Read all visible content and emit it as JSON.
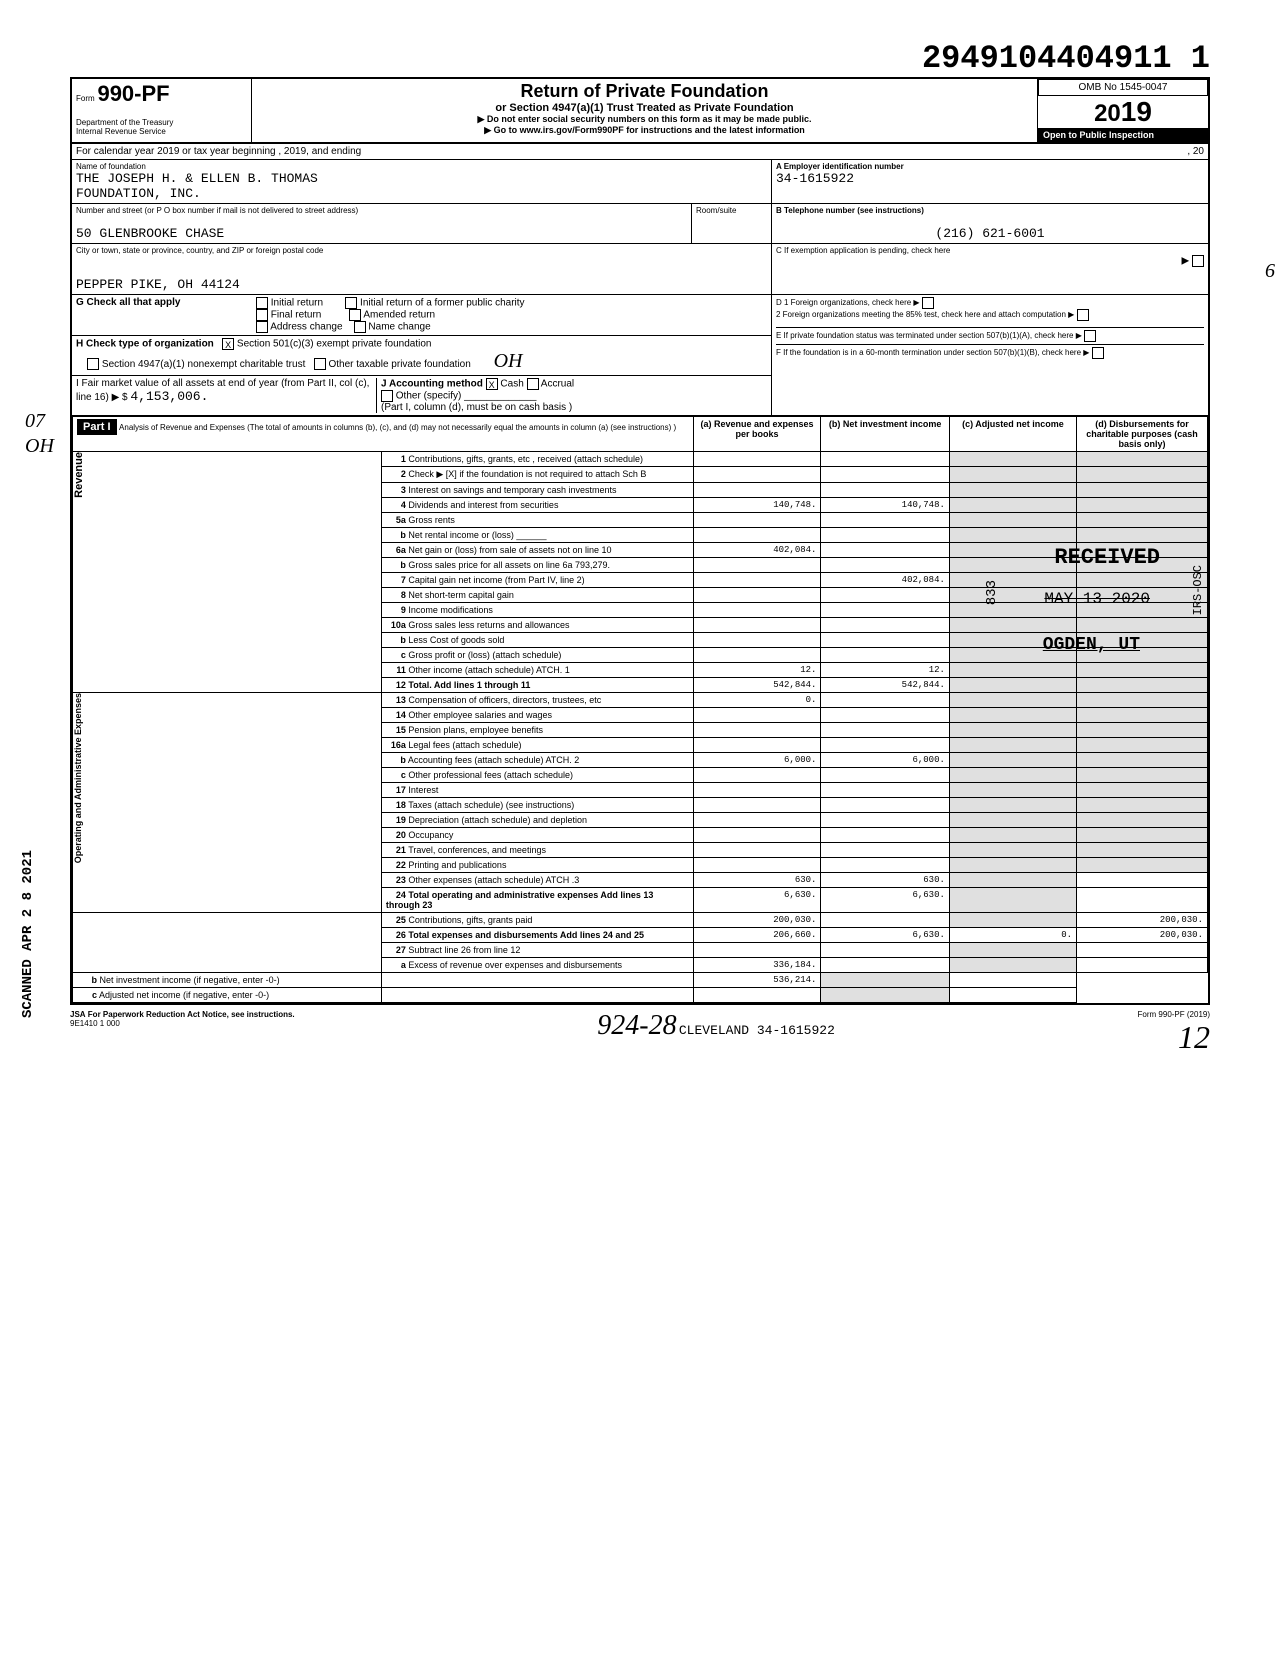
{
  "header_number": "2949104404911 1",
  "form": {
    "prefix": "Form",
    "number": "990-PF",
    "title": "Return of Private Foundation",
    "subtitle": "or Section 4947(a)(1) Trust Treated as Private Foundation",
    "instruction1": "▶ Do not enter social security numbers on this form as it may be made public.",
    "instruction2": "▶ Go to www.irs.gov/Form990PF for instructions and the latest information",
    "dept1": "Department of the Treasury",
    "dept2": "Internal Revenue Service",
    "omb": "OMB No 1545-0047",
    "year": "2019",
    "year_prefix": "20",
    "inspection": "Open to Public Inspection"
  },
  "calendar_year": {
    "label": "For calendar year 2019 or tax year beginning",
    "ending_label": ", 2019, and ending",
    "ending_suffix": ", 20"
  },
  "foundation": {
    "name_label": "Name of foundation",
    "name": "THE JOSEPH H. & ELLEN B. THOMAS",
    "name2": "FOUNDATION, INC.",
    "address_label": "Number and street (or P O  box number if mail is not delivered to street address)",
    "address": "50 GLENBROOKE CHASE",
    "city_label": "City or town, state or province, country, and ZIP or foreign postal code",
    "city": "PEPPER PIKE, OH 44124",
    "room_label": "Room/suite"
  },
  "boxes": {
    "a_label": "A  Employer identification number",
    "a_value": "34-1615922",
    "b_label": "B  Telephone number (see instructions)",
    "b_value": "(216) 621-6001",
    "c_label": "C  If exemption application is pending, check here",
    "d1_label": "D  1  Foreign organizations, check here",
    "d2_label": "2  Foreign organizations meeting the 85% test, check here and attach computation",
    "e_label": "E  If private foundation status was terminated under section 507(b)(1)(A), check here",
    "f_label": "F  If the foundation is in a 60-month termination under section 507(b)(1)(B), check here"
  },
  "checks": {
    "g_label": "G  Check all that apply",
    "initial_return": "Initial return",
    "initial_former": "Initial return of a former public charity",
    "final_return": "Final return",
    "amended": "Amended return",
    "address_change": "Address change",
    "name_change": "Name change",
    "h_label": "H  Check type of organization",
    "h_501c3": "Section 501(c)(3) exempt private foundation",
    "h_4947": "Section 4947(a)(1) nonexempt charitable trust",
    "h_other": "Other taxable private foundation",
    "i_label": "I  Fair market value of all assets at end of year (from Part II, col (c), line 16) ▶ $",
    "i_value": "4,153,006.",
    "j_label": "J Accounting method",
    "j_cash": "Cash",
    "j_accrual": "Accrual",
    "j_other": "Other (specify)",
    "j_note": "(Part I, column (d), must be on cash basis )"
  },
  "part1": {
    "header": "Part I",
    "title": "Analysis of Revenue and Expenses (The total of amounts in columns (b), (c), and (d) may not necessarily equal the amounts in column (a) (see instructions) )",
    "col_a": "(a) Revenue and expenses per books",
    "col_b": "(b) Net investment income",
    "col_c": "(c) Adjusted net income",
    "col_d": "(d) Disbursements for charitable purposes (cash basis only)"
  },
  "lines": [
    {
      "num": "1",
      "label": "Contributions, gifts, grants, etc , received (attach schedule)",
      "a": "",
      "b": "",
      "c": "",
      "d": ""
    },
    {
      "num": "2",
      "label": "Check ▶ [X] if the foundation is not required to attach Sch B",
      "a": "",
      "b": "",
      "c": "",
      "d": ""
    },
    {
      "num": "3",
      "label": "Interest on savings and temporary cash investments",
      "a": "",
      "b": "",
      "c": "",
      "d": ""
    },
    {
      "num": "4",
      "label": "Dividends and interest from securities",
      "a": "140,748.",
      "b": "140,748.",
      "c": "",
      "d": ""
    },
    {
      "num": "5a",
      "label": "Gross rents",
      "a": "",
      "b": "",
      "c": "",
      "d": ""
    },
    {
      "num": "b",
      "label": "Net rental income or (loss) ______",
      "a": "",
      "b": "",
      "c": "",
      "d": ""
    },
    {
      "num": "6a",
      "label": "Net gain or (loss) from sale of assets not on line 10",
      "a": "402,084.",
      "b": "",
      "c": "",
      "d": ""
    },
    {
      "num": "b",
      "label": "Gross sales price for all assets on line 6a         793,279.",
      "a": "",
      "b": "",
      "c": "",
      "d": ""
    },
    {
      "num": "7",
      "label": "Capital gain net income (from Part IV, line 2)",
      "a": "",
      "b": "402,084.",
      "c": "",
      "d": ""
    },
    {
      "num": "8",
      "label": "Net short-term capital gain",
      "a": "",
      "b": "",
      "c": "",
      "d": ""
    },
    {
      "num": "9",
      "label": "Income modifications",
      "a": "",
      "b": "",
      "c": "",
      "d": ""
    },
    {
      "num": "10a",
      "label": "Gross sales less returns and allowances",
      "a": "",
      "b": "",
      "c": "",
      "d": ""
    },
    {
      "num": "b",
      "label": "Less Cost of goods sold",
      "a": "",
      "b": "",
      "c": "",
      "d": ""
    },
    {
      "num": "c",
      "label": "Gross profit or (loss) (attach schedule)",
      "a": "",
      "b": "",
      "c": "",
      "d": ""
    },
    {
      "num": "11",
      "label": "Other income (attach schedule) ATCH. 1",
      "a": "12.",
      "b": "12.",
      "c": "",
      "d": ""
    },
    {
      "num": "12",
      "label": "Total. Add lines 1 through 11",
      "a": "542,844.",
      "b": "542,844.",
      "c": "",
      "d": ""
    },
    {
      "num": "13",
      "label": "Compensation of officers, directors, trustees, etc",
      "a": "0.",
      "b": "",
      "c": "",
      "d": ""
    },
    {
      "num": "14",
      "label": "Other employee salaries and wages",
      "a": "",
      "b": "",
      "c": "",
      "d": ""
    },
    {
      "num": "15",
      "label": "Pension plans, employee benefits",
      "a": "",
      "b": "",
      "c": "",
      "d": ""
    },
    {
      "num": "16a",
      "label": "Legal fees (attach schedule)",
      "a": "",
      "b": "",
      "c": "",
      "d": ""
    },
    {
      "num": "b",
      "label": "Accounting fees (attach schedule) ATCH. 2",
      "a": "6,000.",
      "b": "6,000.",
      "c": "",
      "d": ""
    },
    {
      "num": "c",
      "label": "Other professional fees (attach schedule)",
      "a": "",
      "b": "",
      "c": "",
      "d": ""
    },
    {
      "num": "17",
      "label": "Interest",
      "a": "",
      "b": "",
      "c": "",
      "d": ""
    },
    {
      "num": "18",
      "label": "Taxes (attach schedule) (see instructions)",
      "a": "",
      "b": "",
      "c": "",
      "d": ""
    },
    {
      "num": "19",
      "label": "Depreciation (attach schedule) and depletion",
      "a": "",
      "b": "",
      "c": "",
      "d": ""
    },
    {
      "num": "20",
      "label": "Occupancy",
      "a": "",
      "b": "",
      "c": "",
      "d": ""
    },
    {
      "num": "21",
      "label": "Travel, conferences, and meetings",
      "a": "",
      "b": "",
      "c": "",
      "d": ""
    },
    {
      "num": "22",
      "label": "Printing and publications",
      "a": "",
      "b": "",
      "c": "",
      "d": ""
    },
    {
      "num": "23",
      "label": "Other expenses (attach schedule) ATCH .3",
      "a": "630.",
      "b": "630.",
      "c": "",
      "d": ""
    },
    {
      "num": "24",
      "label": "Total operating and administrative expenses Add lines 13 through 23",
      "a": "6,630.",
      "b": "6,630.",
      "c": "",
      "d": ""
    },
    {
      "num": "25",
      "label": "Contributions, gifts, grants paid",
      "a": "200,030.",
      "b": "",
      "c": "",
      "d": "200,030."
    },
    {
      "num": "26",
      "label": "Total expenses and disbursements  Add lines 24 and 25",
      "a": "206,660.",
      "b": "6,630.",
      "c": "0.",
      "d": "200,030."
    },
    {
      "num": "27",
      "label": "Subtract line 26 from line 12",
      "a": "",
      "b": "",
      "c": "",
      "d": ""
    },
    {
      "num": "a",
      "label": "Excess of revenue over expenses and disbursements",
      "a": "336,184.",
      "b": "",
      "c": "",
      "d": ""
    },
    {
      "num": "b",
      "label": "Net investment income (if negative, enter -0-)",
      "a": "",
      "b": "536,214.",
      "c": "",
      "d": ""
    },
    {
      "num": "c",
      "label": "Adjusted net income (if negative, enter -0-)",
      "a": "",
      "b": "",
      "c": "",
      "d": ""
    }
  ],
  "sections": {
    "revenue": "Revenue",
    "expenses": "Operating and Administrative Expenses"
  },
  "stamps": {
    "received": "RECEIVED",
    "date": "MAY 13 2020",
    "ogden": "OGDEN, UT",
    "irs_osc": "IRS-OSC",
    "num833": "833",
    "scanned": "SCANNED APR 2 8 2021"
  },
  "handwritten": {
    "margin1": "07",
    "margin2": "OH",
    "margin3": "6",
    "initial1": "OH",
    "bottom": "924-28",
    "page": "12"
  },
  "footer": {
    "jsa": "JSA",
    "paperwork": "For Paperwork Reduction Act Notice, see instructions.",
    "code": "9E1410 1 000",
    "cleveland": "CLEVELAND 34-1615922",
    "form_ref": "Form 990-PF (2019)"
  }
}
